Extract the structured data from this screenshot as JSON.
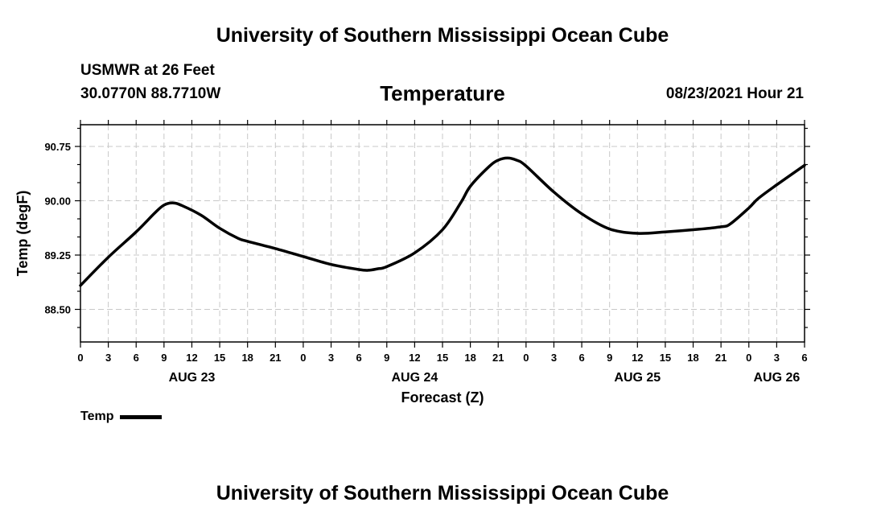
{
  "header": {
    "title": "University of Southern Mississippi Ocean Cube",
    "station": "USMWR at 26 Feet",
    "coordinates": "30.0770N  88.7710W",
    "datetime": "08/23/2021 Hour 21"
  },
  "footer": {
    "title": "University of Southern Mississippi Ocean Cube"
  },
  "chart_data": {
    "type": "line",
    "title": "Temperature",
    "xlabel": "Forecast (Z)",
    "ylabel": "Temp (degF)",
    "xlim": [
      0,
      78
    ],
    "ylim": [
      88.05,
      91.05
    ],
    "x_ticks": [
      0,
      3,
      6,
      9,
      12,
      15,
      18,
      21,
      24,
      27,
      30,
      33,
      36,
      39,
      42,
      45,
      48,
      51,
      54,
      57,
      60,
      63,
      66,
      69,
      72,
      75,
      78
    ],
    "x_tick_labels": [
      "0",
      "3",
      "6",
      "9",
      "12",
      "15",
      "18",
      "21",
      "0",
      "3",
      "6",
      "9",
      "12",
      "15",
      "18",
      "21",
      "0",
      "3",
      "6",
      "9",
      "12",
      "15",
      "18",
      "21",
      "0",
      "3",
      "6"
    ],
    "y_ticks": [
      88.5,
      89.25,
      90.0,
      90.75
    ],
    "y_tick_labels": [
      "88.50",
      "89.25",
      "90.00",
      "90.75"
    ],
    "day_labels": [
      {
        "x": 12,
        "label": "AUG 23"
      },
      {
        "x": 36,
        "label": "AUG 24"
      },
      {
        "x": 60,
        "label": "AUG 25"
      },
      {
        "x": 75,
        "label": "AUG 26"
      }
    ],
    "grid": true,
    "legend_position": "bottom-left",
    "series": [
      {
        "name": "Temp",
        "color": "#000000",
        "x": [
          0,
          3,
          6,
          8,
          9,
          10,
          11,
          13,
          15,
          17,
          18,
          21,
          24,
          27,
          30,
          31,
          32,
          33,
          36,
          39,
          41,
          42,
          44,
          45,
          46,
          47,
          48,
          51,
          54,
          57,
          60,
          63,
          66,
          69,
          70,
          72,
          73,
          75,
          78
        ],
        "values": [
          88.83,
          89.22,
          89.57,
          89.83,
          89.94,
          89.97,
          89.93,
          89.8,
          89.62,
          89.48,
          89.44,
          89.34,
          89.23,
          89.12,
          89.05,
          89.04,
          89.06,
          89.09,
          89.28,
          89.6,
          89.98,
          90.2,
          90.47,
          90.56,
          90.59,
          90.56,
          90.48,
          90.12,
          89.82,
          89.61,
          89.55,
          89.57,
          89.6,
          89.64,
          89.68,
          89.9,
          90.03,
          90.22,
          90.49
        ]
      }
    ]
  },
  "colors": {
    "line": "#000000",
    "grid": "#c8c8c8",
    "background": "#ffffff"
  }
}
